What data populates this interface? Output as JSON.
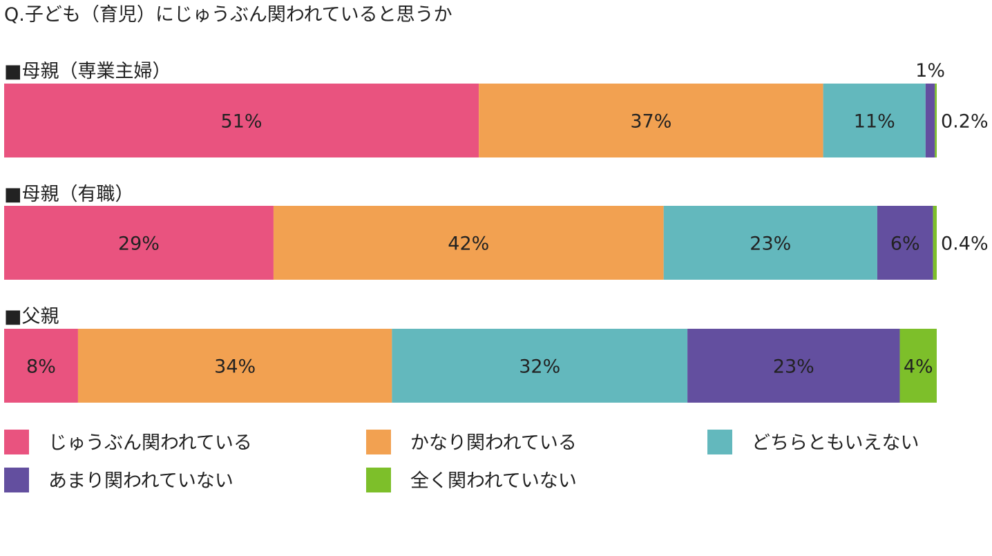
{
  "chart_data": {
    "type": "bar",
    "orientation": "horizontal-stacked",
    "title": "Q.子ども（育児）にじゅうぶん関われていると思うか",
    "xlabel": "",
    "ylabel": "",
    "xlim": [
      0,
      100
    ],
    "grid": false,
    "legend_position": "bottom",
    "categories": [
      "■母親（専業主婦）",
      "■母親（有職）",
      "■父親"
    ],
    "series": [
      {
        "name": "じゅうぶん関われている",
        "color": "#e9537f",
        "values": [
          51,
          29,
          8
        ],
        "labels": [
          "51%",
          "29%",
          "8%"
        ]
      },
      {
        "name": "かなり関われている",
        "color": "#f2a151",
        "values": [
          37,
          42,
          34
        ],
        "labels": [
          "37%",
          "42%",
          "34%"
        ]
      },
      {
        "name": "どちらともいえない",
        "color": "#63b8bd",
        "values": [
          11,
          23,
          32
        ],
        "labels": [
          "11%",
          "23%",
          "32%"
        ]
      },
      {
        "name": "あまり関われていない",
        "color": "#634f9f",
        "values": [
          1,
          6,
          23
        ],
        "labels": [
          "1%",
          "6%",
          "23%"
        ]
      },
      {
        "name": "全く関われていない",
        "color": "#7dbf2a",
        "values": [
          0.2,
          0.4,
          4
        ],
        "labels": [
          "0.2%",
          "0.4%",
          "4%"
        ]
      }
    ]
  }
}
